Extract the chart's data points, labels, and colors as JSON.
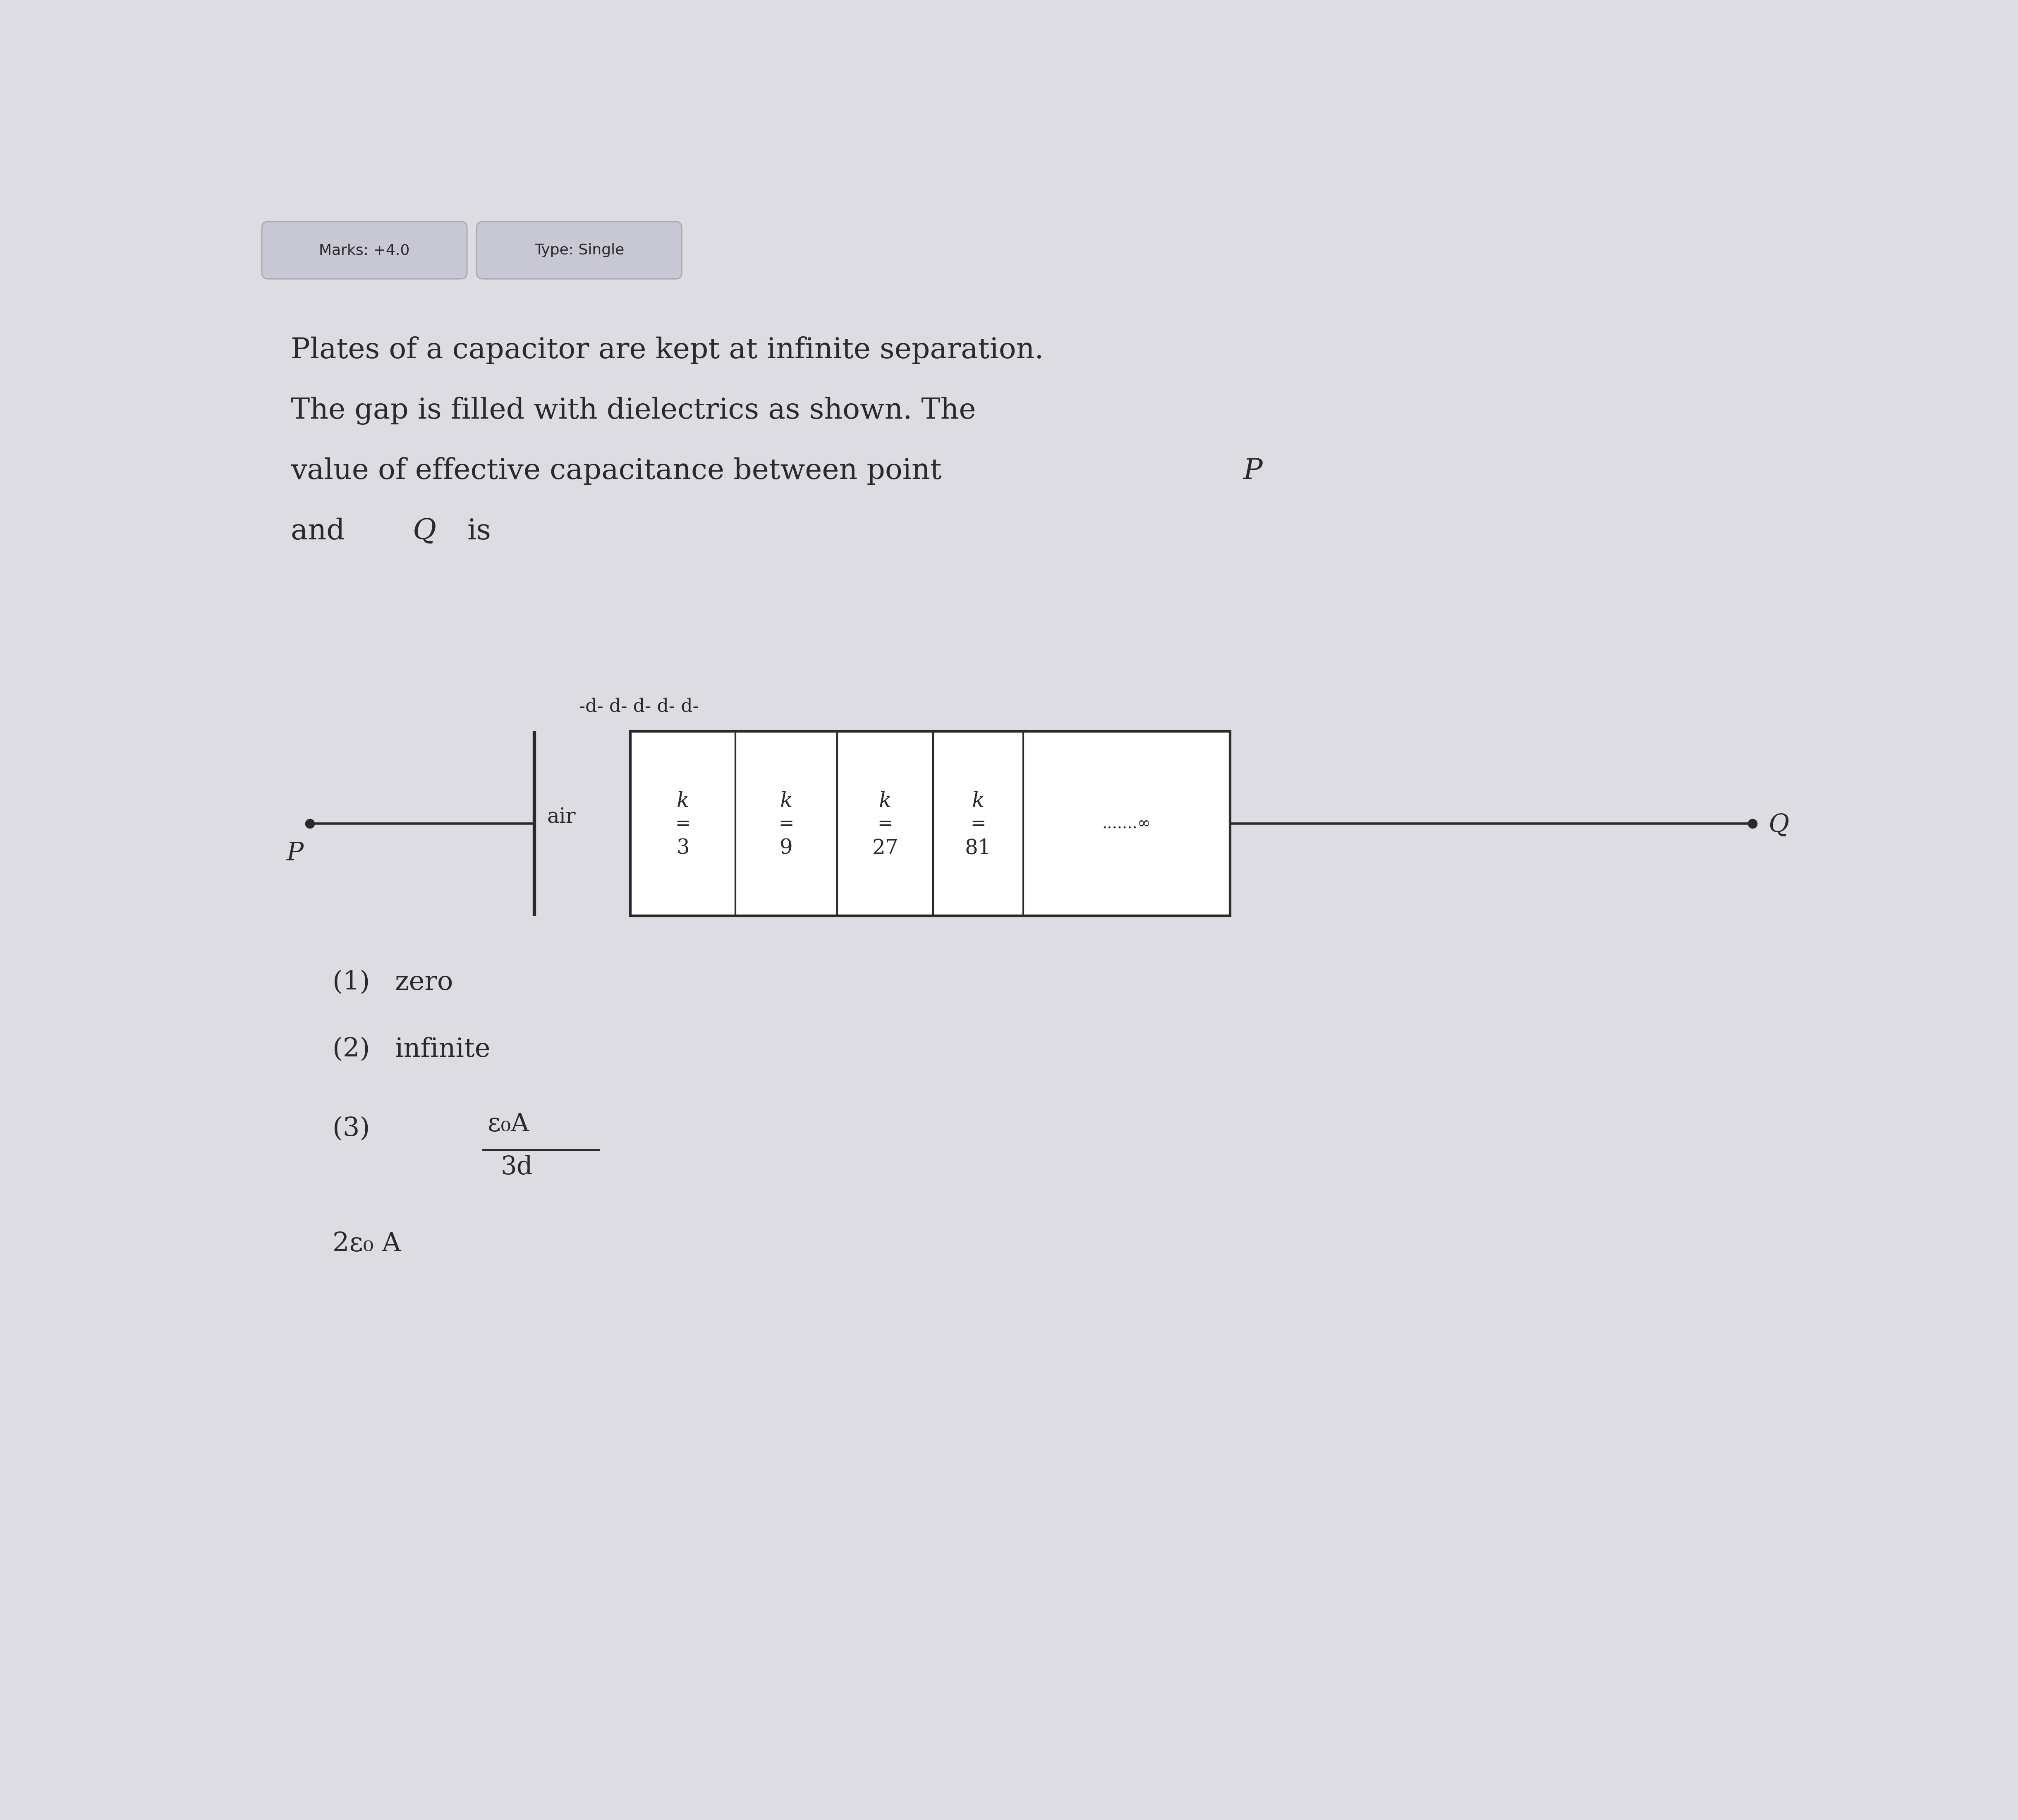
{
  "bg_color": "#dcdce2",
  "badge_color": "#c8c8d4",
  "badge_edge": "#aaaaaa",
  "text_color": "#2a2a2a",
  "marks_label": "Marks: +4.0",
  "type_label": "Type: Single",
  "q_line1": "Plates of a capacitor are kept at infinite separation.",
  "q_line2": "The gap is filled with dielectrics as shown. The",
  "q_line3_main": "value of effective capacitance between point ",
  "q_line3_P": "P",
  "q_line4_and": "and ",
  "q_line4_Q": "Q",
  "q_line4_is": "is",
  "dashes": "-d- d- d- d- d-",
  "air": "air",
  "k_labels": [
    "k",
    "k",
    "k",
    "k"
  ],
  "k_denoms": [
    "3",
    "9",
    "27",
    "81"
  ],
  "infinity_str": ".......∞",
  "P_label": "P",
  "Q_label": "Q",
  "opt1": "(1)   zero",
  "opt2": "(2)   infinite",
  "opt3_prefix": "(3)",
  "opt3_num": "ε₀A",
  "opt3_den": "3d",
  "opt4_partial": "2ε₀ A"
}
